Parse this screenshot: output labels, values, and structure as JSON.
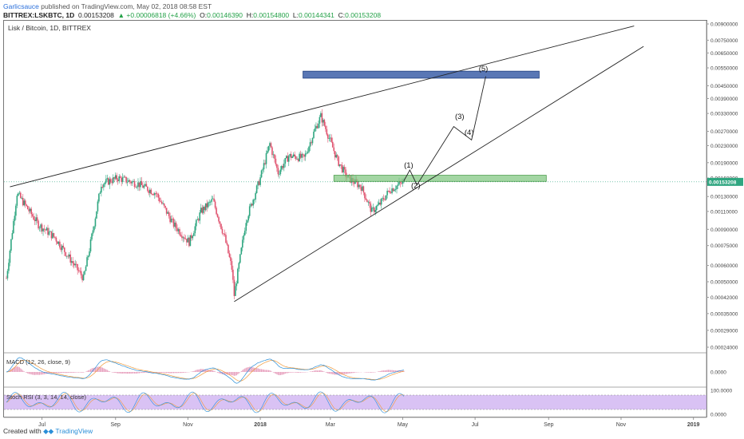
{
  "header": {
    "author": "Garlicsauce",
    "published": "published on TradingView.com, May 02, 2018 08:58 EST",
    "symbol": "BITTREX:LSKBTC, 1D",
    "last": "0.00153208",
    "change": "▲ +0.00006818 (+4.66%)",
    "o_label": "O:",
    "o": "0.00146390",
    "h_label": "H:",
    "h": "0.00154800",
    "l_label": "L:",
    "l": "0.00144341",
    "c_label": "C:",
    "c": "0.00153208"
  },
  "chart_title": "Lisk / Bitcoin, 1D, BITTREX",
  "macd_label": "MACD (12, 26, close, 9)",
  "stoch_label": "Stoch RSI (3, 3, 14, 14, close)",
  "footer": {
    "created": "Created with",
    "brand": "TradingView"
  },
  "colors": {
    "up": "#2fa680",
    "down": "#e0536f",
    "zone_blue": "#3c5fa8",
    "zone_green": "#7cc47c",
    "stoch_band": "#c9a8ef",
    "macd_line": "#2a8fd8",
    "signal_line": "#f09a3c",
    "hist": "#e8a4c0"
  },
  "chart_data": [
    {
      "type": "line",
      "scale": "log",
      "x_ticks": [
        "Jul",
        "Sep",
        "Nov",
        "2018",
        "Mar",
        "May",
        "Jul",
        "Sep",
        "Nov",
        "2019"
      ],
      "y_ticks": [
        "0.00900000",
        "0.00750000",
        "0.00650000",
        "0.00550000",
        "0.00450000",
        "0.00390000",
        "0.00330000",
        "0.00270000",
        "0.00230000",
        "0.00190000",
        "0.00160000",
        "0.00130000",
        "0.00110000",
        "0.00090000",
        "0.00075000",
        "0.00060000",
        "0.00050000",
        "0.00042000",
        "0.00035000",
        "0.00029000",
        "0.00024000"
      ],
      "last_price_label": "0.00153208",
      "price_path": [
        {
          "date": "2017-06-01",
          "price": 0.00052
        },
        {
          "date": "2017-06-10",
          "price": 0.00135
        },
        {
          "date": "2017-06-28",
          "price": 0.00095
        },
        {
          "date": "2017-07-12",
          "price": 0.00082
        },
        {
          "date": "2017-07-22",
          "price": 0.00068
        },
        {
          "date": "2017-08-05",
          "price": 0.00052
        },
        {
          "date": "2017-08-10",
          "price": 0.00072
        },
        {
          "date": "2017-08-20",
          "price": 0.0015
        },
        {
          "date": "2017-09-03",
          "price": 0.0016
        },
        {
          "date": "2017-09-20",
          "price": 0.0015
        },
        {
          "date": "2017-10-05",
          "price": 0.00135
        },
        {
          "date": "2017-10-20",
          "price": 0.00095
        },
        {
          "date": "2017-11-02",
          "price": 0.00078
        },
        {
          "date": "2017-11-12",
          "price": 0.0011
        },
        {
          "date": "2017-11-22",
          "price": 0.00125
        },
        {
          "date": "2017-12-02",
          "price": 0.00082
        },
        {
          "date": "2017-12-08",
          "price": 0.00058
        },
        {
          "date": "2017-12-10",
          "price": 0.00043
        },
        {
          "date": "2017-12-20",
          "price": 0.001
        },
        {
          "date": "2018-01-01",
          "price": 0.0016
        },
        {
          "date": "2018-01-09",
          "price": 0.00235
        },
        {
          "date": "2018-01-16",
          "price": 0.0017
        },
        {
          "date": "2018-01-25",
          "price": 0.00205
        },
        {
          "date": "2018-02-07",
          "price": 0.002
        },
        {
          "date": "2018-02-16",
          "price": 0.00275
        },
        {
          "date": "2018-02-21",
          "price": 0.0032
        },
        {
          "date": "2018-02-27",
          "price": 0.0026
        },
        {
          "date": "2018-03-07",
          "price": 0.00195
        },
        {
          "date": "2018-03-15",
          "price": 0.00162
        },
        {
          "date": "2018-03-27",
          "price": 0.00145
        },
        {
          "date": "2018-04-05",
          "price": 0.0011
        },
        {
          "date": "2018-04-12",
          "price": 0.0012
        },
        {
          "date": "2018-04-20",
          "price": 0.0014
        },
        {
          "date": "2018-05-02",
          "price": 0.00153
        }
      ],
      "annotations": {
        "upper_trendline": [
          {
            "date": "2017-06-04",
            "price": 0.00145
          },
          {
            "date": "2018-11-12",
            "price": 0.0088
          }
        ],
        "lower_trendline": [
          {
            "date": "2017-12-10",
            "price": 0.0004
          },
          {
            "date": "2018-11-20",
            "price": 0.007
          }
        ],
        "resistance_zone": {
          "from": "2018-02-06",
          "to": "2018-08-24",
          "low": 0.0049,
          "high": 0.0053
        },
        "support_zone": {
          "from": "2018-03-04",
          "to": "2018-08-30",
          "low": 0.00154,
          "high": 0.00165
        },
        "wave_labels": [
          {
            "label": "(1)",
            "date": "2018-05-06",
            "price": 0.0018
          },
          {
            "label": "(2)",
            "date": "2018-05-12",
            "price": 0.00143
          },
          {
            "label": "(3)",
            "date": "2018-06-18",
            "price": 0.0031
          },
          {
            "label": "(4)",
            "date": "2018-06-26",
            "price": 0.0026
          },
          {
            "label": "(5)",
            "date": "2018-07-08",
            "price": 0.0053
          }
        ],
        "projection_path": [
          {
            "date": "2018-05-02",
            "price": 0.00155
          },
          {
            "date": "2018-05-07",
            "price": 0.00175
          },
          {
            "date": "2018-05-13",
            "price": 0.00148
          },
          {
            "date": "2018-06-13",
            "price": 0.00285
          },
          {
            "date": "2018-06-28",
            "price": 0.00245
          },
          {
            "date": "2018-07-10",
            "price": 0.005
          }
        ]
      }
    },
    {
      "type": "line",
      "name": "MACD (12, 26, close, 9)",
      "y_ticks": [
        "0.0000"
      ]
    },
    {
      "type": "line",
      "name": "Stoch RSI (3, 3, 14, 14, close)",
      "y_ticks": [
        "100.0000",
        "0.0000"
      ]
    }
  ]
}
